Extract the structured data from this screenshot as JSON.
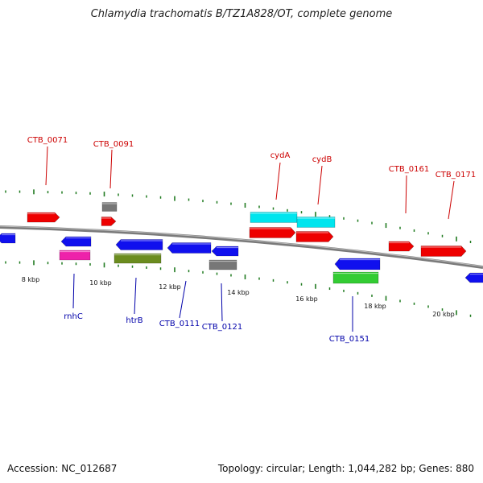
{
  "title": "Chlamydia trachomatis B/TZ1A828/OT, complete genome",
  "footer": {
    "accession": "Accession: NC_012687",
    "summary": "Topology: circular; Length: 1,044,282 bp; Genes: 880"
  },
  "colors": {
    "backbone": "#7a7a7a",
    "tick": "#1f7a1f",
    "label_top": "#cc0000",
    "label_bottom": "#0000aa",
    "red": "#ee0000",
    "gray": "#777777",
    "blue": "#1010ee",
    "magenta": "#ee22aa",
    "olive": "#6b8c1f",
    "cyan": "#00e5ee",
    "green": "#33cc33"
  },
  "kbp_labels": [
    "8 kbp",
    "10 kbp",
    "12 kbp",
    "14 kbp",
    "16 kbp",
    "18 kbp",
    "20 kbp"
  ],
  "gene_labels_top": [
    "CTB_0071",
    "CTB_0091",
    "cydA",
    "cydB",
    "CTB_0161",
    "CTB_0171"
  ],
  "gene_labels_bottom": [
    "rnhC",
    "htrB",
    "CTB_0111",
    "CTB_0121",
    "CTB_0151"
  ]
}
